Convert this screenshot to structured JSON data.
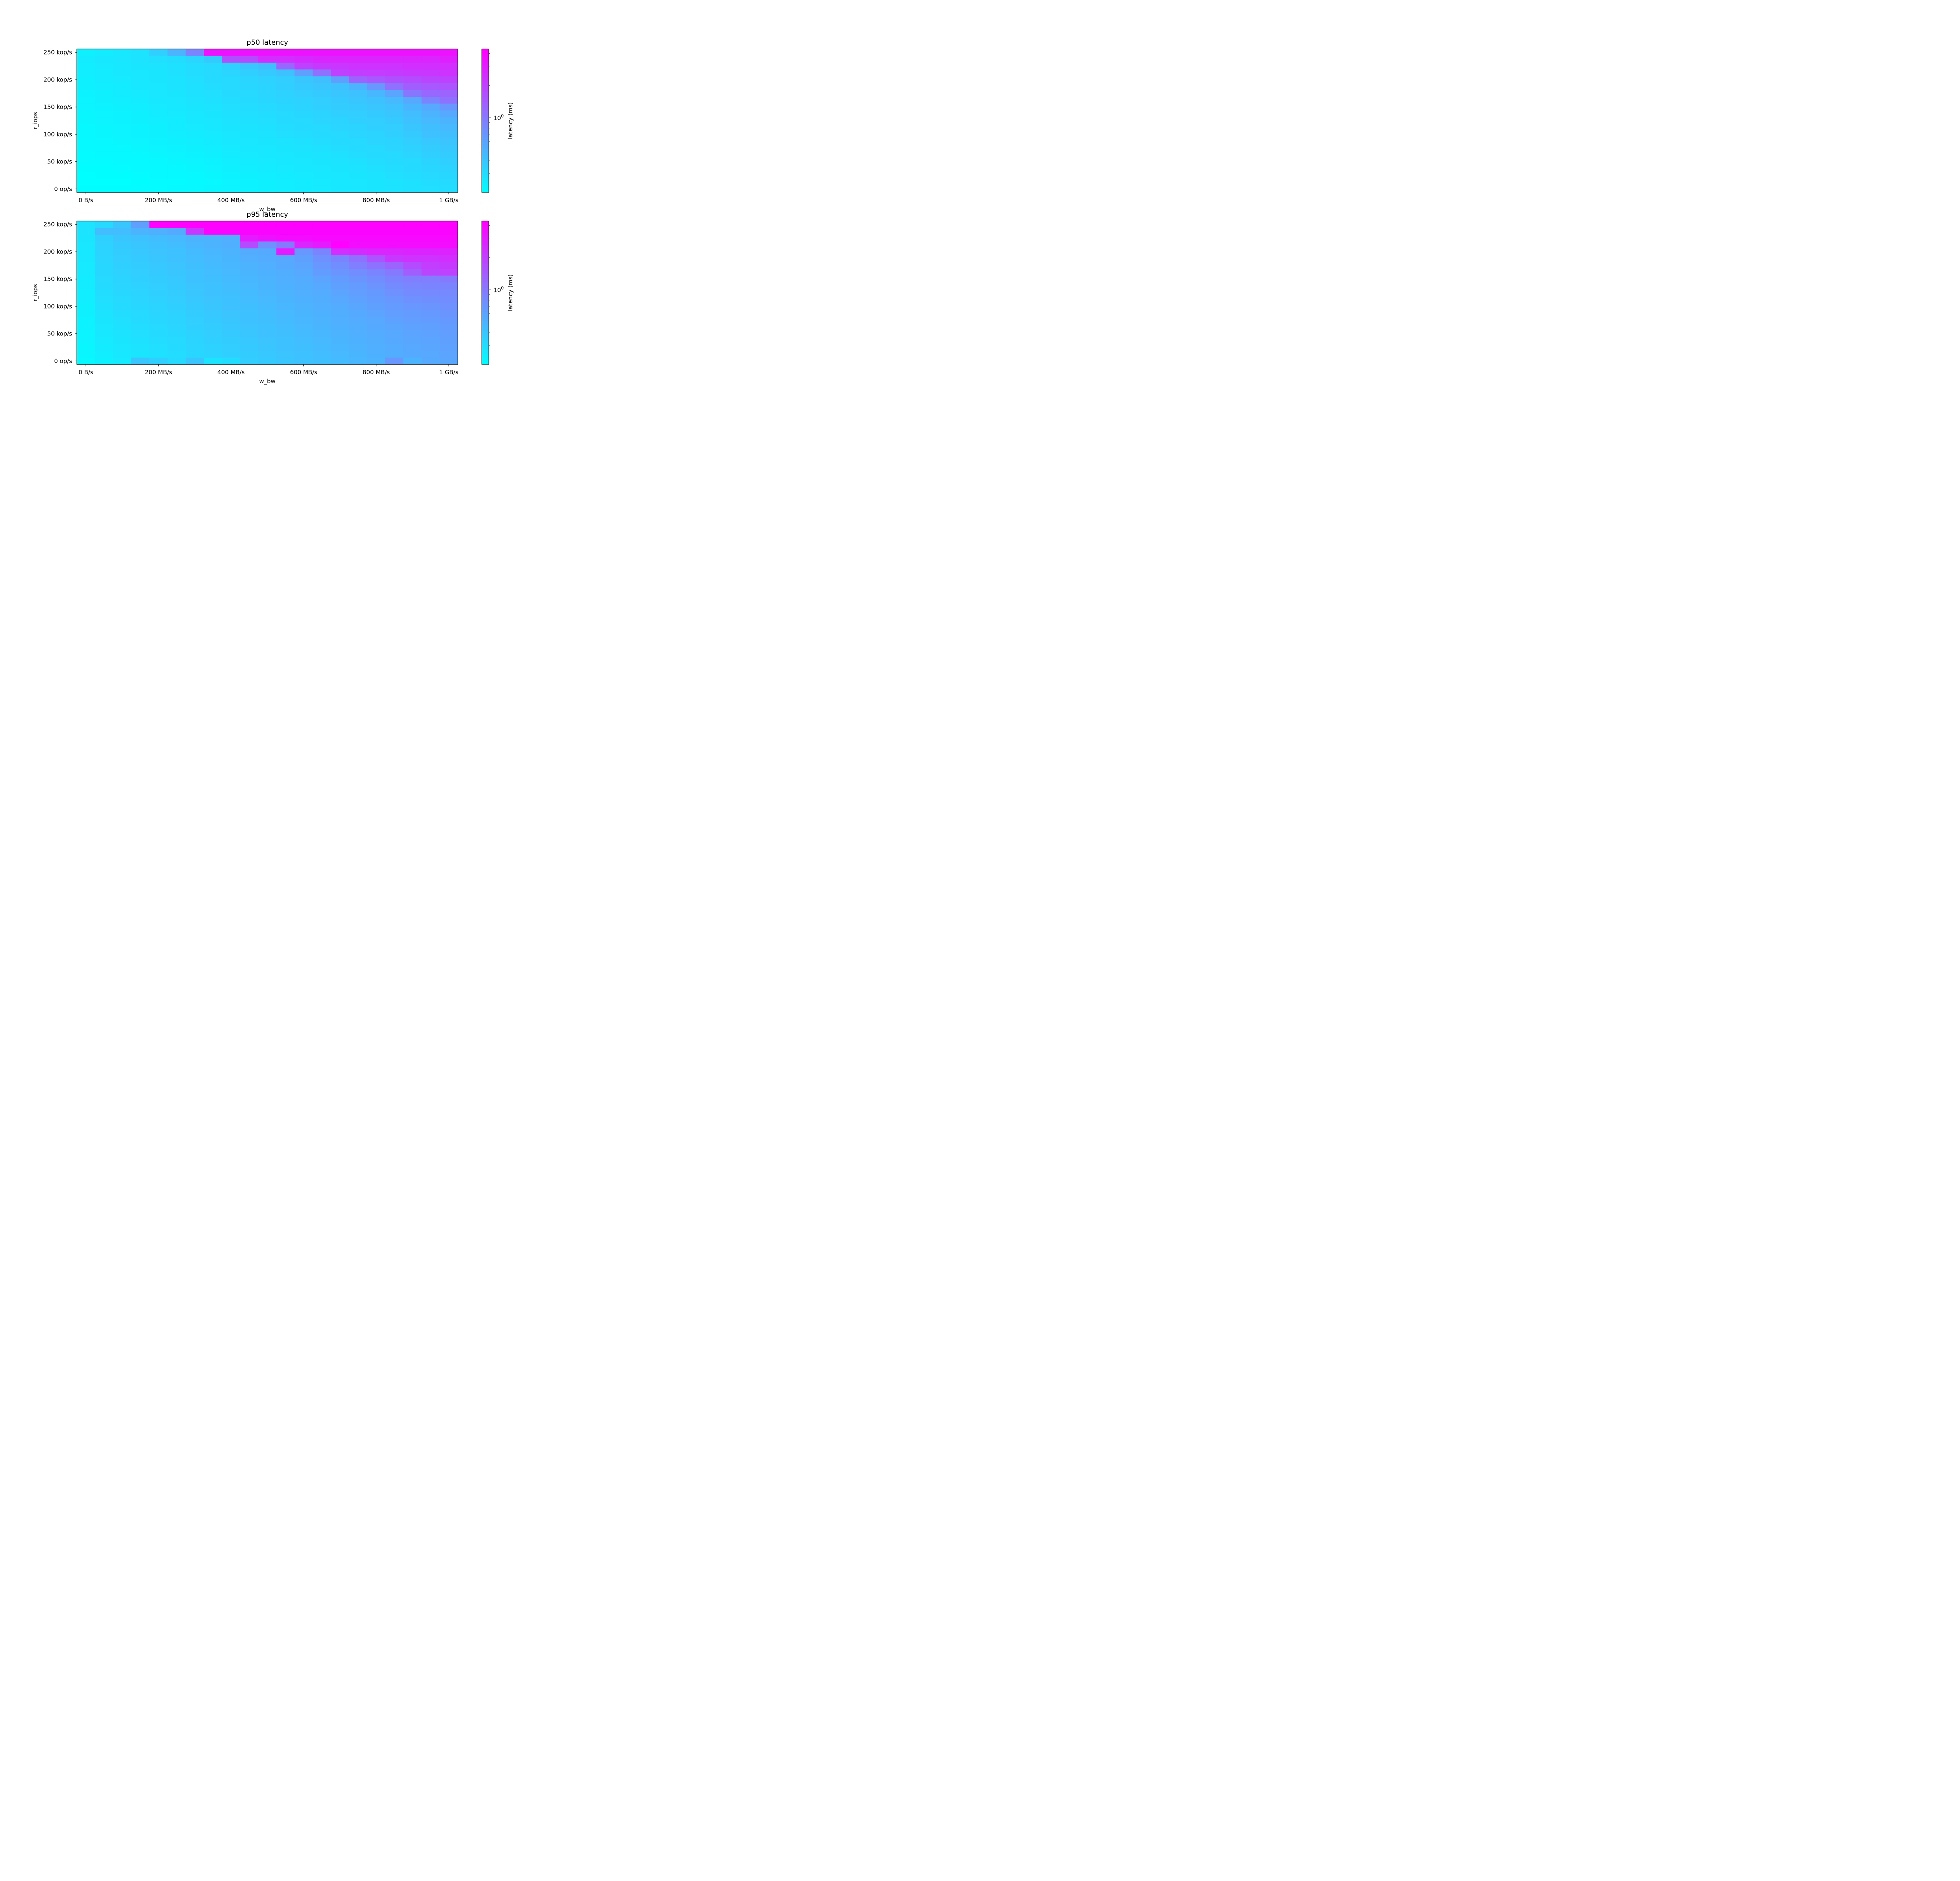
{
  "colors": {
    "colormap_low": "#00ffff",
    "colormap_high": "#ff00ff",
    "axes": "#000000",
    "background": "#ffffff"
  },
  "chart_data": [
    {
      "type": "heatmap",
      "title": "p50 latency",
      "xlabel": "w_bw",
      "ylabel": "r_iops",
      "colorbar_label": "latency (ms)",
      "colorbar_scale": "log",
      "colorbar_tick": "10^0",
      "colorbar_range_ms": [
        0.2,
        4.4
      ],
      "xticks": [
        "0 B/s",
        "200 MB/s",
        "400 MB/s",
        "600 MB/s",
        "800 MB/s",
        "1 GB/s"
      ],
      "xtick_values_mbps": [
        0,
        200,
        400,
        600,
        800,
        1000
      ],
      "yticks": [
        "0 op/s",
        "50 kop/s",
        "100 kop/s",
        "150 kop/s",
        "200 kop/s",
        "250 kop/s"
      ],
      "ytick_values_kops": [
        0,
        50,
        100,
        150,
        200,
        250
      ],
      "x_values_mbps": [
        0,
        50,
        100,
        150,
        200,
        250,
        300,
        350,
        400,
        450,
        500,
        550,
        600,
        650,
        700,
        750,
        800,
        850,
        900,
        950,
        1000
      ],
      "y_values_kops": [
        0,
        12.5,
        25,
        37.5,
        50,
        62.5,
        75,
        87.5,
        100,
        112.5,
        125,
        137.5,
        150,
        162.5,
        175,
        187.5,
        200,
        212.5,
        225,
        237.5,
        250
      ],
      "z_log10_ms_rows_top_to_bottom": [
        [
          -0.62,
          -0.6,
          -0.58,
          -0.55,
          -0.45,
          -0.3,
          -0.05,
          0.55,
          0.55,
          0.55,
          0.55,
          0.55,
          0.55,
          0.55,
          0.55,
          0.55,
          0.55,
          0.55,
          0.55,
          0.55,
          0.55
        ],
        [
          -0.6,
          -0.58,
          -0.57,
          -0.55,
          -0.53,
          -0.52,
          -0.48,
          -0.42,
          0.22,
          0.25,
          0.4,
          0.4,
          0.42,
          0.45,
          0.45,
          0.45,
          0.45,
          0.45,
          0.45,
          0.45,
          0.48
        ],
        [
          -0.61,
          -0.59,
          -0.58,
          -0.56,
          -0.55,
          -0.54,
          -0.52,
          -0.5,
          -0.46,
          -0.4,
          -0.36,
          0.1,
          0.3,
          0.35,
          0.36,
          0.38,
          0.38,
          0.38,
          0.4,
          0.4,
          0.4
        ],
        [
          -0.61,
          -0.6,
          -0.58,
          -0.57,
          -0.56,
          -0.54,
          -0.52,
          -0.5,
          -0.48,
          -0.45,
          -0.42,
          -0.38,
          -0.2,
          0.05,
          0.3,
          0.32,
          0.33,
          0.34,
          0.35,
          0.36,
          0.38
        ],
        [
          -0.62,
          -0.6,
          -0.59,
          -0.57,
          -0.56,
          -0.55,
          -0.53,
          -0.51,
          -0.5,
          -0.48,
          -0.46,
          -0.44,
          -0.4,
          -0.36,
          -0.2,
          0.12,
          0.18,
          0.22,
          0.25,
          0.28,
          0.3
        ],
        [
          -0.62,
          -0.61,
          -0.6,
          -0.58,
          -0.57,
          -0.55,
          -0.54,
          -0.52,
          -0.5,
          -0.49,
          -0.47,
          -0.45,
          -0.42,
          -0.4,
          -0.38,
          -0.3,
          -0.15,
          0.05,
          0.15,
          0.18,
          0.2
        ],
        [
          -0.63,
          -0.62,
          -0.6,
          -0.59,
          -0.57,
          -0.56,
          -0.54,
          -0.53,
          -0.51,
          -0.5,
          -0.48,
          -0.46,
          -0.44,
          -0.42,
          -0.4,
          -0.37,
          -0.32,
          -0.22,
          0.02,
          0.1,
          0.12
        ],
        [
          -0.64,
          -0.62,
          -0.61,
          -0.6,
          -0.58,
          -0.57,
          -0.55,
          -0.54,
          -0.52,
          -0.51,
          -0.49,
          -0.47,
          -0.46,
          -0.44,
          -0.42,
          -0.4,
          -0.37,
          -0.33,
          -0.24,
          -0.05,
          0.05
        ],
        [
          -0.64,
          -0.63,
          -0.62,
          -0.61,
          -0.59,
          -0.58,
          -0.56,
          -0.55,
          -0.53,
          -0.52,
          -0.5,
          -0.49,
          -0.47,
          -0.45,
          -0.43,
          -0.42,
          -0.4,
          -0.37,
          -0.31,
          -0.24,
          -0.15
        ],
        [
          -0.65,
          -0.64,
          -0.63,
          -0.62,
          -0.6,
          -0.59,
          -0.57,
          -0.56,
          -0.54,
          -0.53,
          -0.52,
          -0.5,
          -0.49,
          -0.47,
          -0.45,
          -0.44,
          -0.42,
          -0.4,
          -0.35,
          -0.3,
          -0.25
        ],
        [
          -0.65,
          -0.64,
          -0.63,
          -0.62,
          -0.61,
          -0.6,
          -0.58,
          -0.57,
          -0.55,
          -0.54,
          -0.53,
          -0.51,
          -0.5,
          -0.48,
          -0.47,
          -0.45,
          -0.44,
          -0.42,
          -0.38,
          -0.33,
          -0.3
        ],
        [
          -0.66,
          -0.65,
          -0.64,
          -0.63,
          -0.62,
          -0.6,
          -0.59,
          -0.58,
          -0.56,
          -0.55,
          -0.54,
          -0.52,
          -0.51,
          -0.5,
          -0.48,
          -0.47,
          -0.45,
          -0.44,
          -0.4,
          -0.36,
          -0.33
        ],
        [
          -0.66,
          -0.65,
          -0.64,
          -0.63,
          -0.62,
          -0.61,
          -0.6,
          -0.59,
          -0.57,
          -0.56,
          -0.55,
          -0.53,
          -0.52,
          -0.51,
          -0.5,
          -0.48,
          -0.47,
          -0.45,
          -0.42,
          -0.38,
          -0.36
        ],
        [
          -0.67,
          -0.66,
          -0.65,
          -0.64,
          -0.63,
          -0.62,
          -0.61,
          -0.6,
          -0.58,
          -0.57,
          -0.56,
          -0.55,
          -0.54,
          -0.52,
          -0.51,
          -0.5,
          -0.48,
          -0.47,
          -0.44,
          -0.41,
          -0.39
        ],
        [
          -0.67,
          -0.67,
          -0.66,
          -0.65,
          -0.64,
          -0.63,
          -0.62,
          -0.61,
          -0.59,
          -0.58,
          -0.57,
          -0.56,
          -0.55,
          -0.54,
          -0.52,
          -0.51,
          -0.5,
          -0.48,
          -0.46,
          -0.43,
          -0.41
        ],
        [
          -0.68,
          -0.67,
          -0.67,
          -0.66,
          -0.65,
          -0.64,
          -0.63,
          -0.62,
          -0.6,
          -0.59,
          -0.58,
          -0.57,
          -0.56,
          -0.55,
          -0.54,
          -0.52,
          -0.51,
          -0.5,
          -0.48,
          -0.45,
          -0.43
        ],
        [
          -0.68,
          -0.68,
          -0.67,
          -0.67,
          -0.66,
          -0.65,
          -0.64,
          -0.63,
          -0.61,
          -0.6,
          -0.59,
          -0.58,
          -0.57,
          -0.56,
          -0.55,
          -0.54,
          -0.52,
          -0.51,
          -0.5,
          -0.47,
          -0.45
        ],
        [
          -0.69,
          -0.69,
          -0.68,
          -0.67,
          -0.67,
          -0.66,
          -0.65,
          -0.64,
          -0.62,
          -0.61,
          -0.6,
          -0.59,
          -0.58,
          -0.57,
          -0.56,
          -0.55,
          -0.54,
          -0.52,
          -0.51,
          -0.49,
          -0.47
        ],
        [
          -0.7,
          -0.69,
          -0.69,
          -0.68,
          -0.67,
          -0.67,
          -0.66,
          -0.65,
          -0.63,
          -0.62,
          -0.61,
          -0.6,
          -0.59,
          -0.58,
          -0.57,
          -0.56,
          -0.55,
          -0.53,
          -0.52,
          -0.5,
          -0.49
        ],
        [
          -0.7,
          -0.7,
          -0.7,
          -0.69,
          -0.68,
          -0.68,
          -0.67,
          -0.66,
          -0.64,
          -0.63,
          -0.62,
          -0.61,
          -0.6,
          -0.59,
          -0.58,
          -0.57,
          -0.56,
          -0.55,
          -0.54,
          -0.52,
          -0.51
        ],
        [
          -0.69,
          -0.69,
          -0.69,
          -0.68,
          -0.68,
          -0.67,
          -0.66,
          -0.65,
          -0.64,
          -0.63,
          -0.62,
          -0.61,
          -0.6,
          -0.59,
          -0.58,
          -0.57,
          -0.56,
          -0.55,
          -0.54,
          -0.53,
          -0.52
        ]
      ]
    },
    {
      "type": "heatmap",
      "title": "p95 latency",
      "xlabel": "w_bw",
      "ylabel": "r_iops",
      "colorbar_label": "latency (ms)",
      "colorbar_scale": "log",
      "colorbar_tick": "10^0",
      "colorbar_range_ms": [
        0.2,
        4.4
      ],
      "xticks": [
        "0 B/s",
        "200 MB/s",
        "400 MB/s",
        "600 MB/s",
        "800 MB/s",
        "1 GB/s"
      ],
      "xtick_values_mbps": [
        0,
        200,
        400,
        600,
        800,
        1000
      ],
      "yticks": [
        "0 op/s",
        "50 kop/s",
        "100 kop/s",
        "150 kop/s",
        "200 kop/s",
        "250 kop/s"
      ],
      "ytick_values_kops": [
        0,
        50,
        100,
        150,
        200,
        250
      ],
      "x_values_mbps": [
        0,
        50,
        100,
        150,
        200,
        250,
        300,
        350,
        400,
        450,
        500,
        550,
        600,
        650,
        700,
        750,
        800,
        850,
        900,
        950,
        1000
      ],
      "y_values_kops": [
        0,
        12.5,
        25,
        37.5,
        50,
        62.5,
        75,
        87.5,
        100,
        112.5,
        125,
        137.5,
        150,
        162.5,
        175,
        187.5,
        200,
        212.5,
        225,
        237.5,
        250
      ],
      "z_log10_ms_rows_top_to_bottom": [
        [
          -0.55,
          -0.5,
          -0.4,
          -0.2,
          0.64,
          0.64,
          0.64,
          0.64,
          0.64,
          0.64,
          0.64,
          0.64,
          0.64,
          0.64,
          0.64,
          0.64,
          0.64,
          0.64,
          0.64,
          0.64,
          0.64
        ],
        [
          -0.55,
          -0.35,
          -0.35,
          -0.3,
          -0.28,
          -0.25,
          0.35,
          0.62,
          0.62,
          0.62,
          0.62,
          0.62,
          0.62,
          0.62,
          0.62,
          0.62,
          0.62,
          0.62,
          0.62,
          0.62,
          0.62
        ],
        [
          -0.56,
          -0.45,
          -0.4,
          -0.38,
          -0.35,
          -0.33,
          -0.3,
          -0.3,
          -0.28,
          0.5,
          0.55,
          0.58,
          0.58,
          0.6,
          0.6,
          0.6,
          0.6,
          0.6,
          0.6,
          0.6,
          0.6
        ],
        [
          -0.57,
          -0.46,
          -0.42,
          -0.4,
          -0.37,
          -0.35,
          -0.32,
          -0.3,
          -0.28,
          0.25,
          -0.12,
          0.0,
          0.45,
          0.5,
          0.64,
          0.58,
          0.58,
          0.58,
          0.58,
          0.58,
          0.58
        ],
        [
          -0.58,
          -0.47,
          -0.43,
          -0.41,
          -0.39,
          -0.37,
          -0.34,
          -0.32,
          -0.3,
          -0.26,
          -0.25,
          0.5,
          -0.15,
          -0.05,
          0.4,
          0.42,
          0.45,
          0.45,
          0.46,
          0.46,
          0.46
        ],
        [
          -0.58,
          -0.48,
          -0.44,
          -0.42,
          -0.4,
          -0.38,
          -0.35,
          -0.33,
          -0.31,
          -0.28,
          -0.26,
          -0.24,
          -0.2,
          -0.12,
          -0.05,
          0.05,
          0.2,
          0.35,
          0.38,
          0.38,
          0.4
        ],
        [
          -0.59,
          -0.49,
          -0.45,
          -0.43,
          -0.41,
          -0.39,
          -0.36,
          -0.34,
          -0.32,
          -0.3,
          -0.28,
          -0.25,
          -0.22,
          -0.15,
          -0.1,
          -0.02,
          0.05,
          0.12,
          0.25,
          0.32,
          0.35
        ],
        [
          -0.59,
          -0.49,
          -0.46,
          -0.44,
          -0.42,
          -0.4,
          -0.37,
          -0.35,
          -0.33,
          -0.31,
          -0.29,
          -0.27,
          -0.24,
          -0.18,
          -0.14,
          -0.1,
          -0.05,
          0.0,
          0.15,
          0.28,
          0.3
        ],
        [
          -0.6,
          -0.5,
          -0.47,
          -0.45,
          -0.43,
          -0.41,
          -0.38,
          -0.36,
          -0.34,
          -0.32,
          -0.3,
          -0.28,
          -0.26,
          -0.22,
          -0.18,
          -0.14,
          -0.1,
          -0.05,
          -0.02,
          -0.02,
          0.0
        ],
        [
          -0.6,
          -0.51,
          -0.48,
          -0.46,
          -0.44,
          -0.42,
          -0.39,
          -0.37,
          -0.35,
          -0.33,
          -0.31,
          -0.29,
          -0.27,
          -0.24,
          -0.2,
          -0.17,
          -0.13,
          -0.09,
          -0.06,
          -0.05,
          -0.05
        ],
        [
          -0.61,
          -0.52,
          -0.49,
          -0.47,
          -0.45,
          -0.43,
          -0.4,
          -0.38,
          -0.36,
          -0.34,
          -0.32,
          -0.3,
          -0.28,
          -0.26,
          -0.22,
          -0.19,
          -0.16,
          -0.12,
          -0.09,
          -0.08,
          -0.08
        ],
        [
          -0.61,
          -0.53,
          -0.5,
          -0.48,
          -0.46,
          -0.44,
          -0.41,
          -0.39,
          -0.37,
          -0.35,
          -0.33,
          -0.31,
          -0.29,
          -0.27,
          -0.24,
          -0.21,
          -0.18,
          -0.15,
          -0.12,
          -0.11,
          -0.1
        ],
        [
          -0.62,
          -0.54,
          -0.51,
          -0.49,
          -0.47,
          -0.45,
          -0.42,
          -0.4,
          -0.38,
          -0.36,
          -0.34,
          -0.32,
          -0.3,
          -0.28,
          -0.26,
          -0.23,
          -0.2,
          -0.17,
          -0.15,
          -0.14,
          -0.12
        ],
        [
          -0.62,
          -0.55,
          -0.52,
          -0.5,
          -0.48,
          -0.46,
          -0.43,
          -0.41,
          -0.39,
          -0.37,
          -0.35,
          -0.33,
          -0.31,
          -0.29,
          -0.27,
          -0.25,
          -0.22,
          -0.19,
          -0.17,
          -0.16,
          -0.14
        ],
        [
          -0.63,
          -0.56,
          -0.53,
          -0.51,
          -0.49,
          -0.47,
          -0.44,
          -0.42,
          -0.4,
          -0.38,
          -0.36,
          -0.34,
          -0.32,
          -0.3,
          -0.28,
          -0.26,
          -0.24,
          -0.21,
          -0.19,
          -0.18,
          -0.16
        ],
        [
          -0.63,
          -0.57,
          -0.54,
          -0.52,
          -0.5,
          -0.48,
          -0.45,
          -0.43,
          -0.41,
          -0.39,
          -0.37,
          -0.35,
          -0.33,
          -0.31,
          -0.29,
          -0.27,
          -0.25,
          -0.23,
          -0.21,
          -0.2,
          -0.18
        ],
        [
          -0.64,
          -0.58,
          -0.55,
          -0.53,
          -0.51,
          -0.49,
          -0.46,
          -0.44,
          -0.42,
          -0.4,
          -0.38,
          -0.36,
          -0.34,
          -0.32,
          -0.3,
          -0.28,
          -0.26,
          -0.24,
          -0.22,
          -0.21,
          -0.19
        ],
        [
          -0.64,
          -0.59,
          -0.56,
          -0.54,
          -0.52,
          -0.5,
          -0.47,
          -0.45,
          -0.43,
          -0.41,
          -0.39,
          -0.37,
          -0.35,
          -0.33,
          -0.31,
          -0.29,
          -0.27,
          -0.25,
          -0.23,
          -0.22,
          -0.2
        ],
        [
          -0.65,
          -0.6,
          -0.57,
          -0.55,
          -0.53,
          -0.51,
          -0.48,
          -0.46,
          -0.44,
          -0.42,
          -0.4,
          -0.38,
          -0.36,
          -0.34,
          -0.32,
          -0.3,
          -0.28,
          -0.26,
          -0.24,
          -0.23,
          -0.21
        ],
        [
          -0.65,
          -0.61,
          -0.58,
          -0.56,
          -0.54,
          -0.52,
          -0.49,
          -0.47,
          -0.45,
          -0.43,
          -0.41,
          -0.39,
          -0.37,
          -0.35,
          -0.33,
          -0.31,
          -0.29,
          -0.27,
          -0.25,
          -0.24,
          -0.22
        ],
        [
          -0.66,
          -0.62,
          -0.59,
          -0.4,
          -0.45,
          -0.5,
          -0.4,
          -0.55,
          -0.52,
          -0.44,
          -0.42,
          -0.4,
          -0.38,
          -0.36,
          -0.34,
          -0.32,
          -0.3,
          -0.15,
          -0.3,
          -0.25,
          -0.23
        ]
      ]
    }
  ]
}
